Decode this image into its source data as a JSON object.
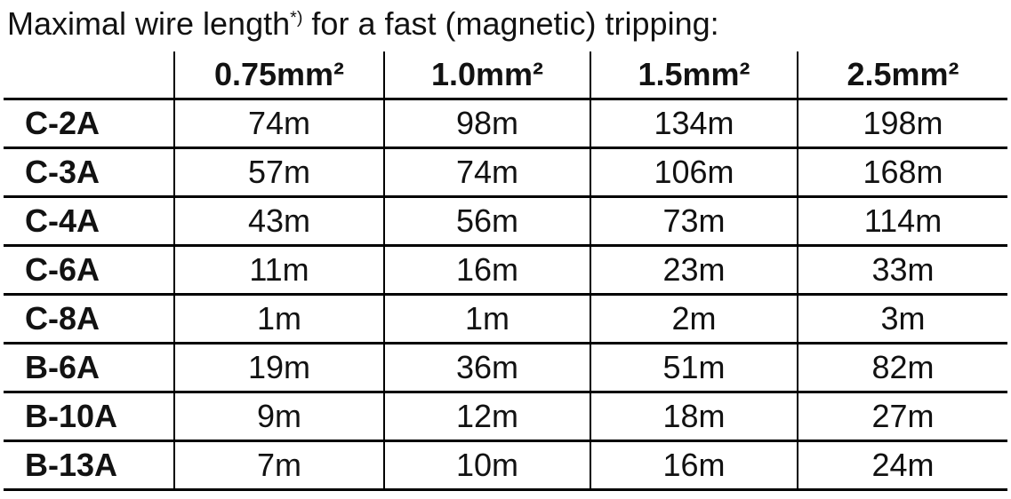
{
  "title": {
    "prefix": "Maximal wire length",
    "superscript": "*)",
    "suffix": " for a fast (magnetic) tripping:"
  },
  "table": {
    "corner": "",
    "columns": [
      "0.75mm²",
      "1.0mm²",
      "1.5mm²",
      "2.5mm²"
    ],
    "rows": [
      {
        "label": "C-2A",
        "values": [
          "74m",
          "98m",
          "134m",
          "198m"
        ]
      },
      {
        "label": "C-3A",
        "values": [
          "57m",
          "74m",
          "106m",
          "168m"
        ]
      },
      {
        "label": "C-4A",
        "values": [
          "43m",
          "56m",
          "73m",
          "114m"
        ]
      },
      {
        "label": "C-6A",
        "values": [
          "11m",
          "16m",
          "23m",
          "33m"
        ]
      },
      {
        "label": "C-8A",
        "values": [
          "1m",
          "1m",
          "2m",
          "3m"
        ]
      },
      {
        "label": "B-6A",
        "values": [
          "19m",
          "36m",
          "51m",
          "82m"
        ]
      },
      {
        "label": "B-10A",
        "values": [
          "9m",
          "12m",
          "18m",
          "27m"
        ]
      },
      {
        "label": "B-13A",
        "values": [
          "7m",
          "10m",
          "16m",
          "24m"
        ]
      }
    ]
  },
  "colors": {
    "text": "#121212",
    "line": "#000000",
    "background": "#ffffff"
  }
}
